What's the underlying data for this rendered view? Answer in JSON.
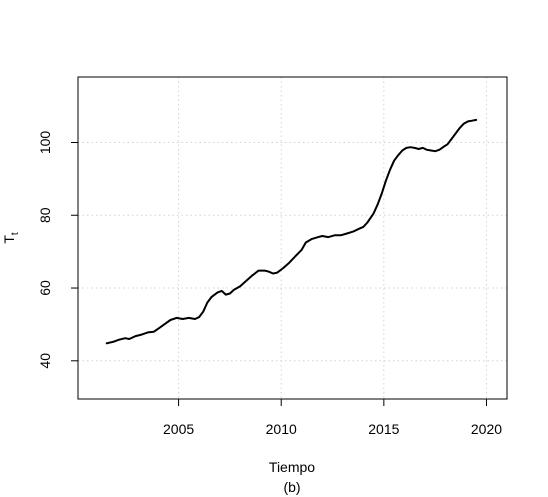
{
  "chart_data": {
    "type": "line",
    "title": "",
    "xlabel": "Tiempo",
    "sublabel": "(b)",
    "ylabel_main": "T",
    "ylabel_sub": "t",
    "xlim": [
      2000.1,
      2021.0
    ],
    "ylim": [
      29.5,
      118
    ],
    "xticks": [
      2005,
      2010,
      2015,
      2020
    ],
    "yticks": [
      40,
      60,
      80,
      100
    ],
    "xtick_labels": [
      "2005",
      "2010",
      "2015",
      "2020"
    ],
    "ytick_labels": [
      "40",
      "60",
      "80",
      "100"
    ],
    "grid": true,
    "line_color": "#000000",
    "grid_color": "#d3d3d3",
    "series": [
      {
        "x": [
          2001.5,
          2001.8,
          2002.1,
          2002.4,
          2002.6,
          2002.9,
          2003.2,
          2003.5,
          2003.8,
          2004.0,
          2004.3,
          2004.6,
          2004.9,
          2005.2,
          2005.5,
          2005.8,
          2006.0,
          2006.2,
          2006.4,
          2006.6,
          2006.9,
          2007.1,
          2007.3,
          2007.5,
          2007.7,
          2008.0,
          2008.3,
          2008.6,
          2008.9,
          2009.2,
          2009.4,
          2009.6,
          2009.8,
          2010.1,
          2010.4,
          2010.7,
          2011.0,
          2011.2,
          2011.5,
          2011.8,
          2012.0,
          2012.3,
          2012.6,
          2012.9,
          2013.2,
          2013.5,
          2013.8,
          2014.0,
          2014.2,
          2014.5,
          2014.7,
          2014.9,
          2015.1,
          2015.3,
          2015.5,
          2015.7,
          2015.9,
          2016.1,
          2016.3,
          2016.5,
          2016.7,
          2016.9,
          2017.1,
          2017.3,
          2017.5,
          2017.7,
          2017.9,
          2018.1,
          2018.3,
          2018.5,
          2018.7,
          2018.9,
          2019.1,
          2019.3,
          2019.5
        ],
        "y": [
          44.8,
          45.2,
          45.8,
          46.2,
          46.0,
          46.8,
          47.2,
          47.8,
          48.0,
          48.8,
          50.0,
          51.2,
          51.8,
          51.5,
          51.8,
          51.5,
          52.0,
          53.5,
          56.0,
          57.5,
          58.8,
          59.2,
          58.2,
          58.5,
          59.5,
          60.5,
          62.0,
          63.5,
          64.8,
          64.8,
          64.5,
          64.0,
          64.2,
          65.5,
          67.0,
          68.8,
          70.5,
          72.5,
          73.5,
          74.0,
          74.3,
          74.0,
          74.5,
          74.5,
          75.0,
          75.5,
          76.3,
          76.8,
          78.0,
          80.5,
          83.0,
          86.0,
          89.5,
          92.5,
          95.0,
          96.5,
          97.8,
          98.5,
          98.7,
          98.5,
          98.2,
          98.5,
          98.0,
          97.8,
          97.6,
          98.0,
          98.8,
          99.5,
          101.0,
          102.5,
          104.0,
          105.2,
          105.8,
          106.0,
          106.2
        ]
      }
    ]
  }
}
